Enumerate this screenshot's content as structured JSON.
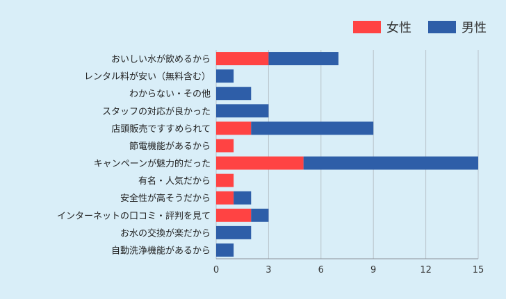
{
  "chart_data": {
    "type": "bar",
    "orientation": "horizontal",
    "stacked": true,
    "title": "",
    "xlabel": "",
    "ylabel": "",
    "categories": [
      "おいしい水が飲めるから",
      "レンタル料が安い（無料含む）",
      "わからない・その他",
      "スタッフの対応が良かった",
      "店頭販売ですすめられて",
      "節電機能があるから",
      "キャンペーンが魅力的だった",
      "有名・人気だから",
      "安全性が高そうだから",
      "インターネットの口コミ・評判を見て",
      "お水の交換が楽だから",
      "自動洗浄機能があるから"
    ],
    "series": [
      {
        "name": "女性",
        "color": "#ff4343",
        "values": [
          3,
          0,
          0,
          0,
          2,
          1,
          5,
          1,
          1,
          2,
          0,
          0
        ]
      },
      {
        "name": "男性",
        "color": "#2e5ea8",
        "values": [
          4,
          1,
          2,
          3,
          7,
          0,
          10,
          0,
          1,
          1,
          2,
          1
        ]
      }
    ],
    "xlim": [
      0,
      15
    ],
    "xticks": [
      "0",
      "3",
      "6",
      "9",
      "12",
      "15"
    ],
    "grid": true,
    "legend_position": "top-right"
  }
}
